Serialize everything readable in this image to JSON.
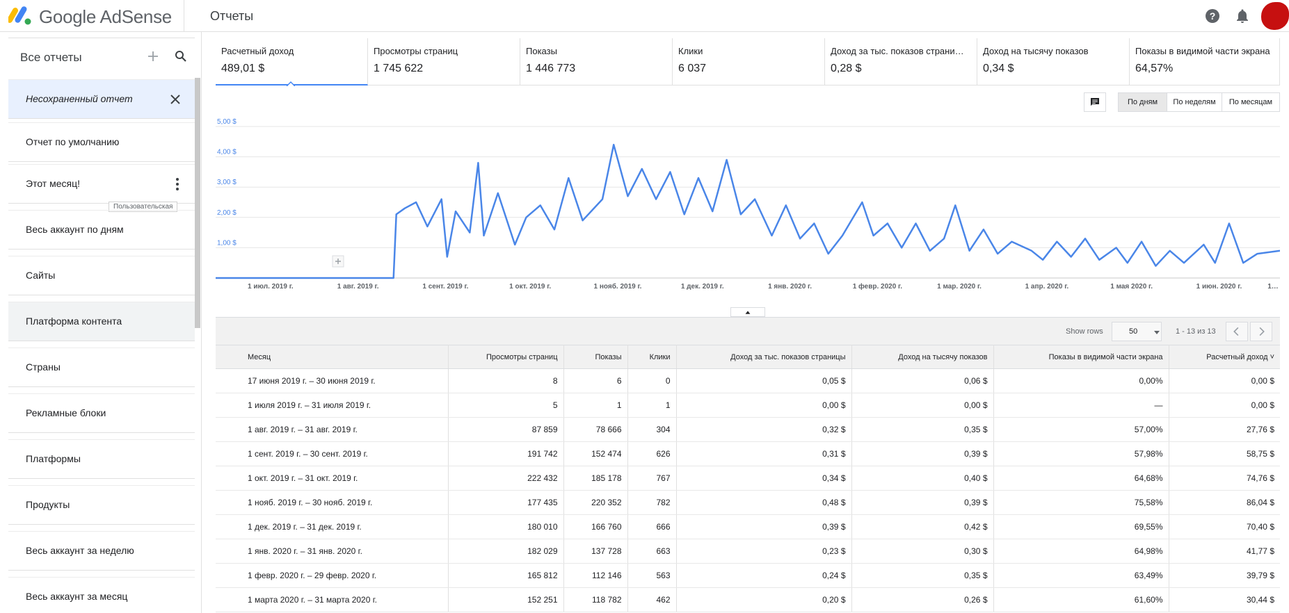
{
  "header": {
    "brand": "Google AdSense",
    "page_title": "Отчеты"
  },
  "sidebar": {
    "title": "Все отчеты",
    "tooltip": "Пользовательская",
    "items": [
      {
        "label": "Несохраненный отчет",
        "state": "active"
      },
      {
        "label": "Отчет по умолчанию"
      },
      {
        "label": "Этот месяц!"
      },
      {
        "label": "Весь аккаунт по дням"
      },
      {
        "label": "Сайты"
      },
      {
        "label": "Платформа контента",
        "state": "hover"
      },
      {
        "label": "Страны"
      },
      {
        "label": "Рекламные блоки"
      },
      {
        "label": "Платформы"
      },
      {
        "label": "Продукты"
      },
      {
        "label": "Весь аккаунт за неделю"
      },
      {
        "label": "Весь аккаунт за месяц"
      }
    ]
  },
  "kpis": [
    {
      "label": "Расчетный доход",
      "value": "489,01 $",
      "selected": true
    },
    {
      "label": "Просмотры страниц",
      "value": "1 745 622"
    },
    {
      "label": "Показы",
      "value": "1 446 773"
    },
    {
      "label": "Клики",
      "value": "6 037"
    },
    {
      "label": "Доход за тыс. показов страни…",
      "value": "0,28 $"
    },
    {
      "label": "Доход на тысячу показов",
      "value": "0,34 $"
    },
    {
      "label": "Показы в видимой части экрана",
      "value": "64,57%"
    }
  ],
  "chart_controls": {
    "by_day": "По дням",
    "by_week": "По неделям",
    "by_month": "По месяцам",
    "selected": "by_day"
  },
  "chart_data": {
    "type": "line",
    "ylabel": "",
    "ylim": [
      0,
      5
    ],
    "y_ticks": [
      "5,00 $",
      "4,00 $",
      "3,00 $",
      "2,00 $",
      "1,00 $"
    ],
    "y_tick_values": [
      5,
      4,
      3,
      2,
      1
    ],
    "x_ticks": [
      "1 июл. 2019 г.",
      "1 авг. 2019 г.",
      "1 сент. 2019 г.",
      "1 окт. 2019 г.",
      "1 нояб. 2019 г.",
      "1 дек. 2019 г.",
      "1 янв. 2020 г.",
      "1 февр. 2020 г.",
      "1 мар. 2020 г.",
      "1 апр. 2020 г.",
      "1 мая 2020 г.",
      "1 июн. 2020 г.",
      "1…"
    ],
    "x_tick_dates": [
      "2019-07-01",
      "2019-08-01",
      "2019-09-01",
      "2019-10-01",
      "2019-11-01",
      "2019-12-01",
      "2020-01-01",
      "2020-02-01",
      "2020-03-01",
      "2020-04-01",
      "2020-05-01",
      "2020-06-01",
      "2020-07-01"
    ],
    "x_range": [
      "2019-06-17",
      "2020-06-28"
    ],
    "color": "#4a86e8",
    "grid": true,
    "series": [
      {
        "x": [
          "2019-06-17",
          "2019-07-01",
          "2019-08-01",
          "2019-08-19",
          "2019-08-20",
          "2019-08-23",
          "2019-08-27",
          "2019-08-31",
          "2019-09-05",
          "2019-09-07",
          "2019-09-10",
          "2019-09-15",
          "2019-09-18",
          "2019-09-20",
          "2019-09-25",
          "2019-10-01",
          "2019-10-05",
          "2019-10-10",
          "2019-10-15",
          "2019-10-20",
          "2019-10-25",
          "2019-11-01",
          "2019-11-05",
          "2019-11-10",
          "2019-11-15",
          "2019-11-20",
          "2019-11-25",
          "2019-11-30",
          "2019-12-05",
          "2019-12-10",
          "2019-12-15",
          "2019-12-20",
          "2019-12-25",
          "2019-12-31",
          "2020-01-05",
          "2020-01-10",
          "2020-01-15",
          "2020-01-20",
          "2020-01-25",
          "2020-02-01",
          "2020-02-05",
          "2020-02-10",
          "2020-02-15",
          "2020-02-20",
          "2020-02-25",
          "2020-03-01",
          "2020-03-05",
          "2020-03-10",
          "2020-03-15",
          "2020-03-20",
          "2020-03-25",
          "2020-04-01",
          "2020-04-05",
          "2020-04-10",
          "2020-04-15",
          "2020-04-20",
          "2020-04-25",
          "2020-05-01",
          "2020-05-05",
          "2020-05-10",
          "2020-05-15",
          "2020-05-20",
          "2020-05-25",
          "2020-06-01",
          "2020-06-05",
          "2020-06-10",
          "2020-06-15",
          "2020-06-20",
          "2020-06-28"
        ],
        "values": [
          0,
          0,
          0,
          0,
          2.1,
          2.3,
          2.5,
          1.7,
          2.6,
          0.7,
          2.2,
          1.5,
          3.8,
          1.4,
          2.8,
          1.1,
          2.0,
          2.4,
          1.6,
          3.3,
          1.9,
          2.6,
          4.4,
          2.7,
          3.6,
          2.6,
          3.5,
          2.1,
          3.3,
          2.2,
          3.9,
          2.1,
          2.6,
          1.4,
          2.4,
          1.3,
          1.8,
          0.8,
          1.4,
          2.5,
          1.4,
          1.8,
          1.0,
          1.8,
          0.9,
          1.3,
          2.4,
          0.9,
          1.6,
          0.8,
          1.2,
          0.9,
          0.6,
          1.2,
          0.7,
          1.3,
          0.6,
          1.0,
          0.5,
          1.2,
          0.4,
          0.9,
          0.5,
          1.1,
          0.5,
          1.8,
          0.5,
          0.8,
          0.9
        ]
      }
    ]
  },
  "table_controls": {
    "show_rows_label": "Show rows",
    "rows_value": "50",
    "range_label": "1 - 13 из 13"
  },
  "table": {
    "columns": [
      "Месяц",
      "Просмотры страниц",
      "Показы",
      "Клики",
      "Доход за тыс. показов страницы",
      "Доход на тысячу показов",
      "Показы в видимой части экрана",
      "Расчетный доход ˅"
    ],
    "rows": [
      [
        "17 июня 2019 г. – 30 июня 2019 г.",
        "8",
        "6",
        "0",
        "0,05 $",
        "0,06 $",
        "0,00%",
        "0,00 $"
      ],
      [
        "1 июля 2019 г. – 31 июля 2019 г.",
        "5",
        "1",
        "1",
        "0,00 $",
        "0,00 $",
        "—",
        "0,00 $"
      ],
      [
        "1 авг. 2019 г. – 31 авг. 2019 г.",
        "87 859",
        "78 666",
        "304",
        "0,32 $",
        "0,35 $",
        "57,00%",
        "27,76 $"
      ],
      [
        "1 сент. 2019 г. – 30 сент. 2019 г.",
        "191 742",
        "152 474",
        "626",
        "0,31 $",
        "0,39 $",
        "57,98%",
        "58,75 $"
      ],
      [
        "1 окт. 2019 г. – 31 окт. 2019 г.",
        "222 432",
        "185 178",
        "767",
        "0,34 $",
        "0,40 $",
        "64,68%",
        "74,76 $"
      ],
      [
        "1 нояб. 2019 г. – 30 нояб. 2019 г.",
        "177 435",
        "220 352",
        "782",
        "0,48 $",
        "0,39 $",
        "75,58%",
        "86,04 $"
      ],
      [
        "1 дек. 2019 г. – 31 дек. 2019 г.",
        "180 010",
        "166 760",
        "666",
        "0,39 $",
        "0,42 $",
        "69,55%",
        "70,40 $"
      ],
      [
        "1 янв. 2020 г. – 31 янв. 2020 г.",
        "182 029",
        "137 728",
        "663",
        "0,23 $",
        "0,30 $",
        "64,98%",
        "41,77 $"
      ],
      [
        "1 февр. 2020 г. – 29 февр. 2020 г.",
        "165 812",
        "112 146",
        "563",
        "0,24 $",
        "0,35 $",
        "63,49%",
        "39,79 $"
      ],
      [
        "1 марта 2020 г. – 31 марта 2020 г.",
        "152 251",
        "118 782",
        "462",
        "0,20 $",
        "0,26 $",
        "61,60%",
        "30,44 $"
      ]
    ]
  }
}
